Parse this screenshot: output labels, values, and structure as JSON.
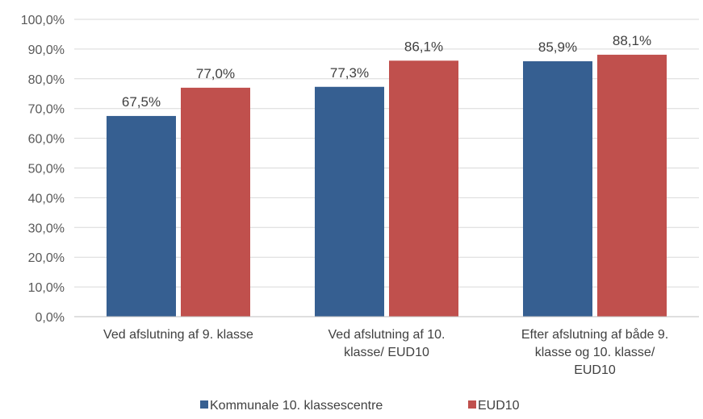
{
  "chart_data": {
    "type": "bar",
    "categories": [
      [
        "Ved afslutning af 9. klasse"
      ],
      [
        "Ved afslutning af 10.",
        "klasse/ EUD10"
      ],
      [
        "Efter afslutning af både 9.",
        "klasse og 10. klasse/",
        "EUD10"
      ]
    ],
    "series": [
      {
        "name": "Kommunale 10. klassescentre",
        "values": [
          67.5,
          77.3,
          85.9
        ],
        "labels": [
          "67,5%",
          "77,3%",
          "85,9%"
        ],
        "color": "#365F91"
      },
      {
        "name": "EUD10",
        "values": [
          77.0,
          86.1,
          88.1
        ],
        "labels": [
          "77,0%",
          "86,1%",
          "88,1%"
        ],
        "color": "#C0504D"
      }
    ],
    "ylim": [
      0,
      100
    ],
    "yticks": [
      "0,0%",
      "10,0%",
      "20,0%",
      "30,0%",
      "40,0%",
      "50,0%",
      "60,0%",
      "70,0%",
      "80,0%",
      "90,0%",
      "100,0%"
    ],
    "grid": true,
    "legend": "bottom"
  }
}
